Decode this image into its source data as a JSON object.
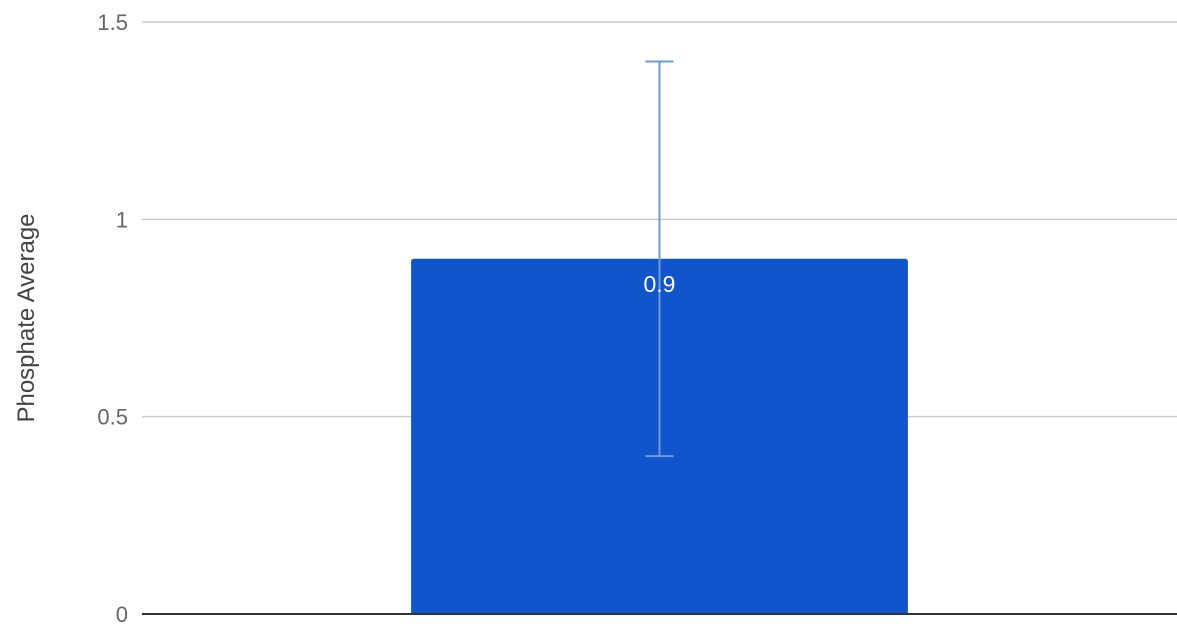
{
  "chart_data": {
    "type": "bar",
    "categories": [
      ""
    ],
    "series": [
      {
        "values": [
          0.9
        ],
        "error_low": [
          0.4
        ],
        "error_high": [
          1.4
        ]
      }
    ],
    "data_labels": [
      "0.9"
    ],
    "xlabel": "",
    "ylabel": "Phosphate Average",
    "ylim": [
      0,
      1.5
    ],
    "yticks": [
      0,
      0.5,
      1,
      1.5
    ],
    "ytick_labels": [
      "0",
      "0.5",
      "1",
      "1.5"
    ],
    "grid": true,
    "legend": "none",
    "colors": {
      "bar": "#1155cc",
      "error_bar": "#6f9ad6",
      "grid": "#cccccc",
      "baseline": "#333333",
      "data_label": "#ffffff"
    }
  }
}
